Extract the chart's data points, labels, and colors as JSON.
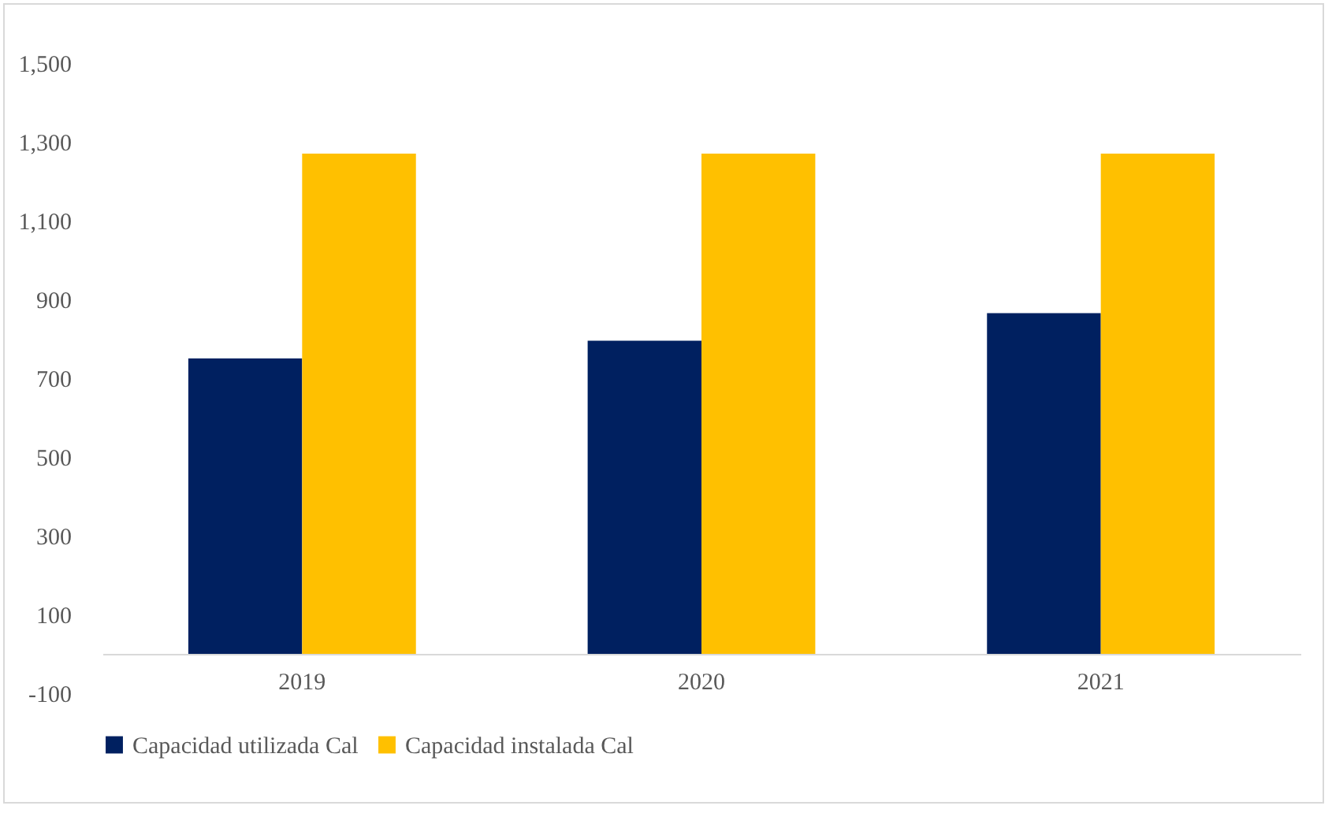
{
  "chart_data": {
    "type": "bar",
    "categories": [
      "2019",
      "2020",
      "2021"
    ],
    "series": [
      {
        "name": "Capacidad utilizada Cal",
        "color": "#002060",
        "values": [
          750,
          795,
          865
        ]
      },
      {
        "name": "Capacidad instalada Cal",
        "color": "#ffc000",
        "values": [
          1270,
          1270,
          1270
        ]
      }
    ],
    "ylim": [
      -100,
      1500
    ],
    "yticks": [
      {
        "value": -100,
        "label": "-100"
      },
      {
        "value": 100,
        "label": "100"
      },
      {
        "value": 300,
        "label": "300"
      },
      {
        "value": 500,
        "label": "500"
      },
      {
        "value": 700,
        "label": "700"
      },
      {
        "value": 900,
        "label": "900"
      },
      {
        "value": 1100,
        "label": "1,100"
      },
      {
        "value": 1300,
        "label": "1,300"
      },
      {
        "value": 1500,
        "label": "1,500"
      }
    ],
    "grid": false,
    "legend": "bottom"
  }
}
